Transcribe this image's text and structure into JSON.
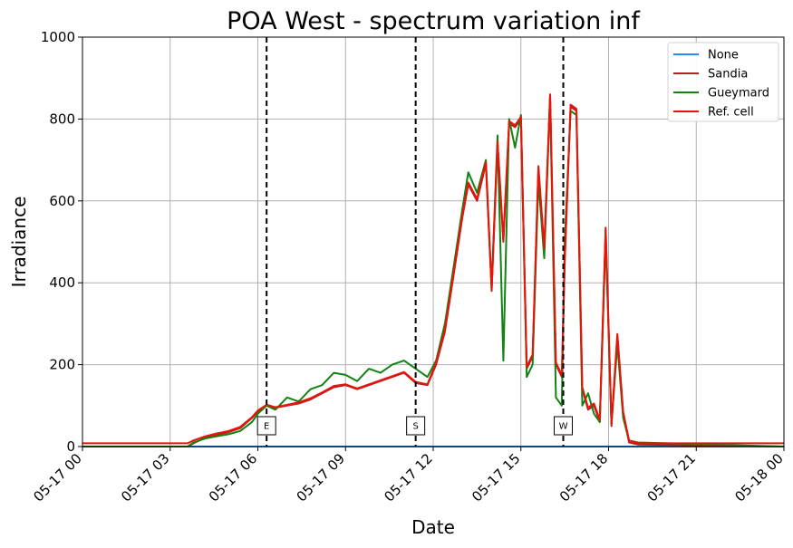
{
  "chart_data": {
    "type": "line",
    "title": "POA West - spectrum variation inf",
    "xlabel": "Date",
    "ylabel": "Irradiance",
    "xlim": [
      0,
      24
    ],
    "ylim": [
      0,
      1000
    ],
    "x_ticks": [
      {
        "value": 0,
        "label": "05-17 00"
      },
      {
        "value": 3,
        "label": "05-17 03"
      },
      {
        "value": 6,
        "label": "05-17 06"
      },
      {
        "value": 9,
        "label": "05-17 09"
      },
      {
        "value": 12,
        "label": "05-17 12"
      },
      {
        "value": 15,
        "label": "05-17 15"
      },
      {
        "value": 18,
        "label": "05-17 18"
      },
      {
        "value": 21,
        "label": "05-17 21"
      },
      {
        "value": 24,
        "label": "05-18 00"
      }
    ],
    "y_ticks": [
      0,
      200,
      400,
      600,
      800,
      1000
    ],
    "grid": true,
    "legend_position": "top-right",
    "vertical_markers": [
      {
        "x": 6.3,
        "label": "E"
      },
      {
        "x": 11.4,
        "label": "S"
      },
      {
        "x": 16.45,
        "label": "W"
      }
    ],
    "series": [
      {
        "name": "None",
        "color": "#1f8fff",
        "x": [
          0,
          24
        ],
        "y": [
          0,
          0
        ]
      },
      {
        "name": "Sandia",
        "color": "#b22222",
        "x": [
          0,
          3.6,
          3.8,
          4.2,
          4.6,
          5.0,
          5.4,
          5.8,
          6.0,
          6.3,
          6.6,
          7.0,
          7.4,
          7.8,
          8.2,
          8.6,
          9.0,
          9.4,
          9.8,
          10.2,
          10.6,
          11.0,
          11.4,
          11.8,
          12.1,
          12.4,
          12.7,
          13.0,
          13.2,
          13.5,
          13.8,
          14.0,
          14.2,
          14.4,
          14.6,
          14.8,
          15.0,
          15.2,
          15.4,
          15.6,
          15.8,
          16.0,
          16.2,
          16.4,
          16.5,
          16.7,
          16.9,
          17.1,
          17.3,
          17.5,
          17.7,
          17.9,
          18.1,
          18.3,
          18.5,
          18.7,
          19.0,
          24
        ],
        "y": [
          0,
          0,
          8,
          22,
          28,
          35,
          45,
          70,
          85,
          100,
          95,
          100,
          105,
          115,
          130,
          145,
          150,
          140,
          150,
          160,
          170,
          180,
          155,
          150,
          200,
          280,
          420,
          560,
          640,
          600,
          690,
          380,
          740,
          500,
          790,
          780,
          800,
          190,
          220,
          680,
          480,
          860,
          200,
          170,
          450,
          830,
          820,
          140,
          90,
          100,
          60,
          530,
          50,
          270,
          80,
          10,
          5,
          0
        ]
      },
      {
        "name": "Gueymard",
        "color": "#128212",
        "x": [
          0,
          3.6,
          3.8,
          4.2,
          4.6,
          5.0,
          5.4,
          5.8,
          6.0,
          6.3,
          6.6,
          7.0,
          7.4,
          7.8,
          8.2,
          8.6,
          9.0,
          9.4,
          9.8,
          10.2,
          10.6,
          11.0,
          11.4,
          11.8,
          12.1,
          12.4,
          12.7,
          13.0,
          13.2,
          13.5,
          13.8,
          14.0,
          14.2,
          14.4,
          14.6,
          14.8,
          15.0,
          15.2,
          15.4,
          15.6,
          15.8,
          16.0,
          16.2,
          16.4,
          16.5,
          16.7,
          16.9,
          17.1,
          17.3,
          17.5,
          17.7,
          17.9,
          18.1,
          18.3,
          18.5,
          18.7,
          19.0,
          24
        ],
        "y": [
          0,
          0,
          10,
          20,
          25,
          30,
          38,
          60,
          80,
          100,
          90,
          120,
          110,
          140,
          150,
          180,
          175,
          160,
          190,
          180,
          200,
          210,
          190,
          170,
          210,
          300,
          440,
          580,
          670,
          620,
          700,
          390,
          760,
          210,
          800,
          730,
          810,
          170,
          200,
          650,
          460,
          850,
          120,
          100,
          500,
          820,
          810,
          100,
          130,
          80,
          60,
          510,
          55,
          250,
          70,
          15,
          10,
          0
        ]
      },
      {
        "name": "Ref. cell",
        "color": "#e8140a",
        "x": [
          0,
          3.6,
          3.8,
          4.2,
          4.6,
          5.0,
          5.4,
          5.8,
          6.0,
          6.3,
          6.6,
          7.0,
          7.4,
          7.8,
          8.2,
          8.6,
          9.0,
          9.4,
          9.8,
          10.2,
          10.6,
          11.0,
          11.4,
          11.8,
          12.1,
          12.4,
          12.7,
          13.0,
          13.2,
          13.5,
          13.8,
          14.0,
          14.2,
          14.4,
          14.6,
          14.8,
          15.0,
          15.2,
          15.4,
          15.6,
          15.8,
          16.0,
          16.2,
          16.4,
          16.5,
          16.7,
          16.9,
          17.1,
          17.3,
          17.5,
          17.7,
          17.9,
          18.1,
          18.3,
          18.5,
          18.7,
          19.0,
          24
        ],
        "y": [
          8,
          8,
          15,
          25,
          32,
          38,
          48,
          72,
          88,
          102,
          96,
          102,
          108,
          118,
          132,
          148,
          152,
          142,
          152,
          162,
          172,
          182,
          158,
          152,
          205,
          285,
          425,
          565,
          645,
          605,
          695,
          385,
          745,
          505,
          795,
          785,
          805,
          195,
          225,
          685,
          485,
          860,
          205,
          175,
          455,
          835,
          825,
          145,
          95,
          105,
          65,
          535,
          55,
          275,
          85,
          15,
          8,
          8
        ]
      }
    ]
  }
}
